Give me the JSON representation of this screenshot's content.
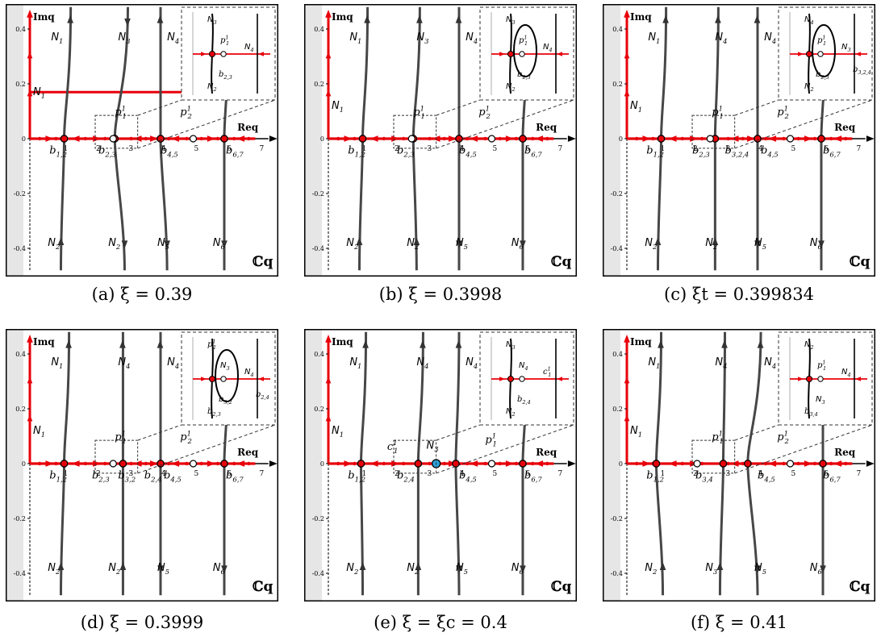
{
  "axes": {
    "real_label": "Req",
    "imag_label": "Imq",
    "plane_label": "ℂq",
    "x_ticks": [
      "1",
      "2",
      "3",
      "4",
      "5",
      "6",
      "7"
    ],
    "y_ticks": [
      "0.4",
      "0.2",
      "0",
      "-0.2",
      "-0.4"
    ]
  },
  "panels": [
    {
      "id": "a",
      "caption": "(a) ξ = 0.39",
      "top_labels": [
        "N1",
        "N3",
        "N4"
      ],
      "bottom_labels": [
        "N2",
        "N2",
        "N5",
        "N6"
      ],
      "left_label": "N1",
      "point_labels": [
        "p1 1",
        "p2 1"
      ],
      "branch_labels": [
        "b1,2",
        "b2,3",
        "b4,5",
        "b6,7"
      ],
      "inset_labels": [
        "N3",
        "p1 1",
        "N4",
        "N2",
        "b2,3"
      ]
    },
    {
      "id": "b",
      "caption": "(b) ξ = 0.3998",
      "top_labels": [
        "N1",
        "N3",
        "N4"
      ],
      "bottom_labels": [
        "N2",
        "N2",
        "N5",
        "N6"
      ],
      "left_label": "N1",
      "point_labels": [
        "p1 1",
        "p2 1"
      ],
      "branch_labels": [
        "b1,2",
        "b2,3",
        "b4,5",
        "b6,7"
      ],
      "inset_labels": [
        "N3",
        "p1 1",
        "N4",
        "N2",
        "b2,3"
      ]
    },
    {
      "id": "c",
      "caption": "(c) ξt = 0.399834",
      "top_labels": [
        "N1",
        "N4",
        "N4"
      ],
      "bottom_labels": [
        "N2",
        "N2",
        "N5",
        "N6"
      ],
      "left_label": "N1",
      "point_labels": [
        "p1 1",
        "p2 1"
      ],
      "branch_labels": [
        "b1,2",
        "b2,3",
        "b3,2,4",
        "b4,5",
        "b6,7"
      ],
      "inset_labels": [
        "N4",
        "p1 1",
        "N3",
        "N2",
        "b2,3",
        "b3,2,4"
      ]
    },
    {
      "id": "d",
      "caption": "(d) ξ = 0.3999",
      "top_labels": [
        "N1",
        "N4",
        "N4"
      ],
      "bottom_labels": [
        "N2",
        "N2",
        "N5",
        "N6"
      ],
      "left_label": "N1",
      "point_labels": [
        "p1 1",
        "p2 1"
      ],
      "branch_labels": [
        "b1,2",
        "b2,3",
        "b3,2",
        "b2,4",
        "b4,5",
        "b6,7"
      ],
      "inset_labels": [
        "p1 1",
        "N3",
        "N4",
        "b2,3",
        "b3,2",
        "b2,4"
      ]
    },
    {
      "id": "e",
      "caption": "(e) ξ = ξc = 0.4",
      "top_labels": [
        "N1",
        "N4",
        "N4"
      ],
      "bottom_labels": [
        "N2",
        "N2",
        "N5",
        "N6"
      ],
      "left_label": "N1",
      "point_labels": [
        "c1 1",
        "N3",
        "p1 1"
      ],
      "branch_labels": [
        "b1,2",
        "b2,4",
        "b4,5",
        "b6,7"
      ],
      "inset_labels": [
        "N3",
        "N4",
        "c1 1",
        "N2",
        "b2,4"
      ]
    },
    {
      "id": "f",
      "caption": "(f) ξ = 0.41",
      "top_labels": [
        "N1",
        "N4",
        "N4"
      ],
      "bottom_labels": [
        "N2",
        "N3",
        "N5",
        "N6"
      ],
      "left_label": "N1",
      "point_labels": [
        "p1 1",
        "p2 1"
      ],
      "branch_labels": [
        "b1,2",
        "b3,4",
        "b4,5",
        "b6,7"
      ],
      "inset_labels": [
        "N2",
        "p1 1",
        "N4",
        "b3,4",
        "N3"
      ]
    }
  ],
  "colors": {
    "stream": "#474747",
    "axis_red": "#e8000a",
    "inset_bg": "#ffffff",
    "strip": "#e6e6e6",
    "critical_fill": "#2aa0d8"
  }
}
